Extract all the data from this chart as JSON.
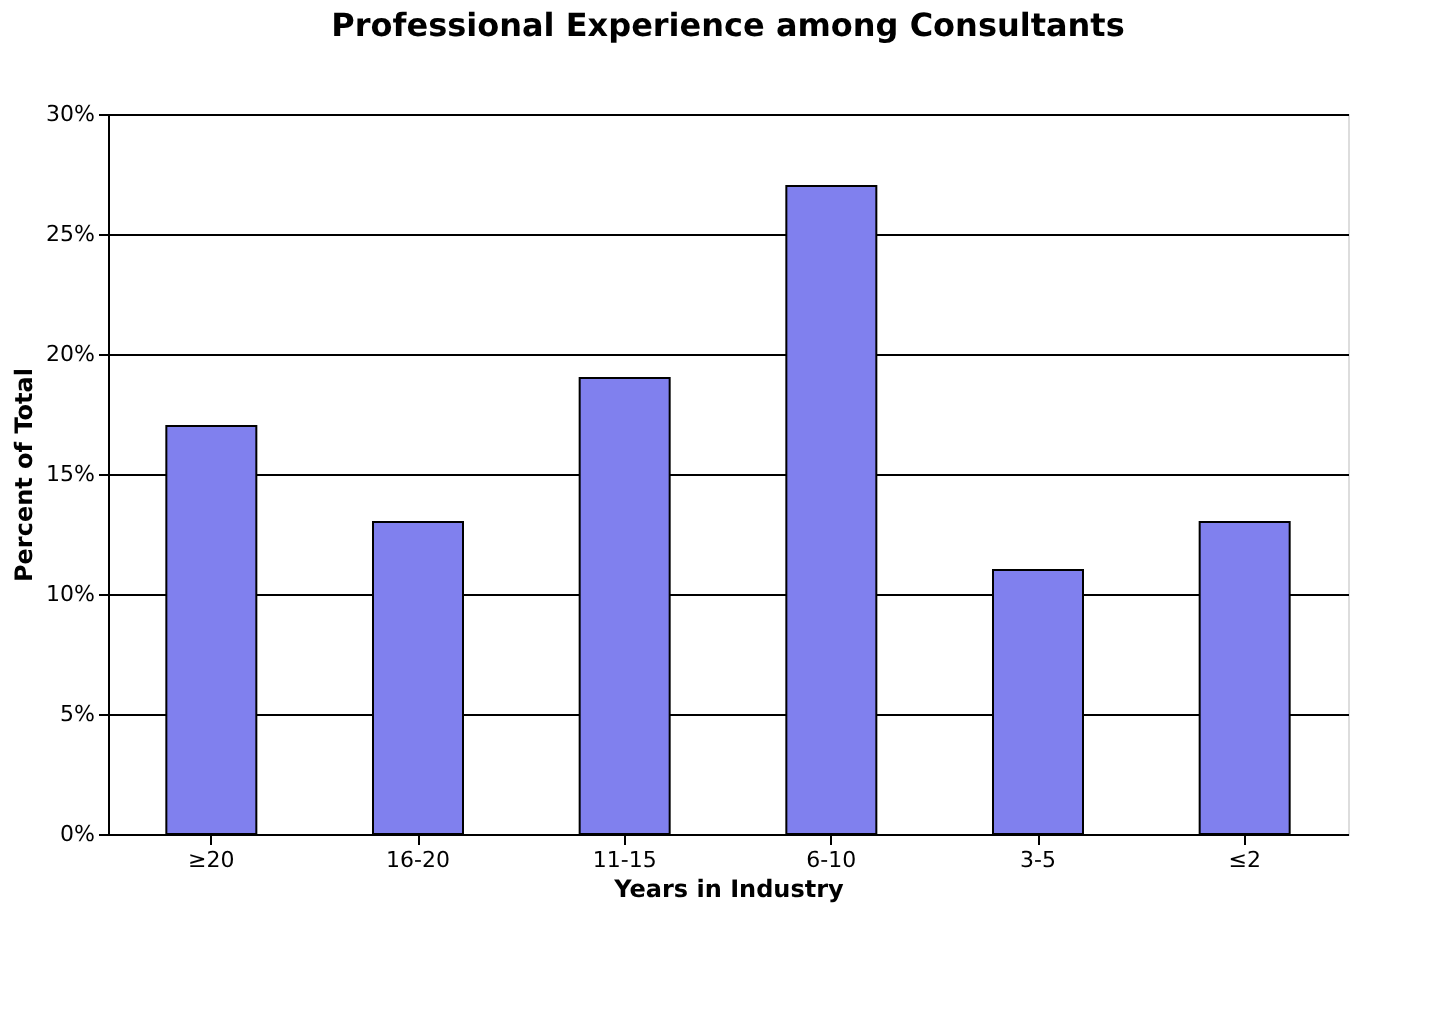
{
  "chart_data": {
    "type": "bar",
    "title": "Professional Experience among Consultants",
    "xlabel": "Years in Industry",
    "ylabel": "Percent of Total",
    "categories": [
      "≥20",
      "16-20",
      "11-15",
      "6-10",
      "3-5",
      "≤2"
    ],
    "values": [
      17,
      13,
      19,
      27,
      11,
      13
    ],
    "color": "#8080ee",
    "ylim": [
      0,
      30
    ],
    "yticks": [
      {
        "value": 0,
        "label": "0%"
      },
      {
        "value": 5,
        "label": "5%"
      },
      {
        "value": 10,
        "label": "10%"
      },
      {
        "value": 15,
        "label": "15%"
      },
      {
        "value": 20,
        "label": "20%"
      },
      {
        "value": 25,
        "label": "25%"
      },
      {
        "value": 30,
        "label": "30%"
      }
    ],
    "grid": "y"
  }
}
